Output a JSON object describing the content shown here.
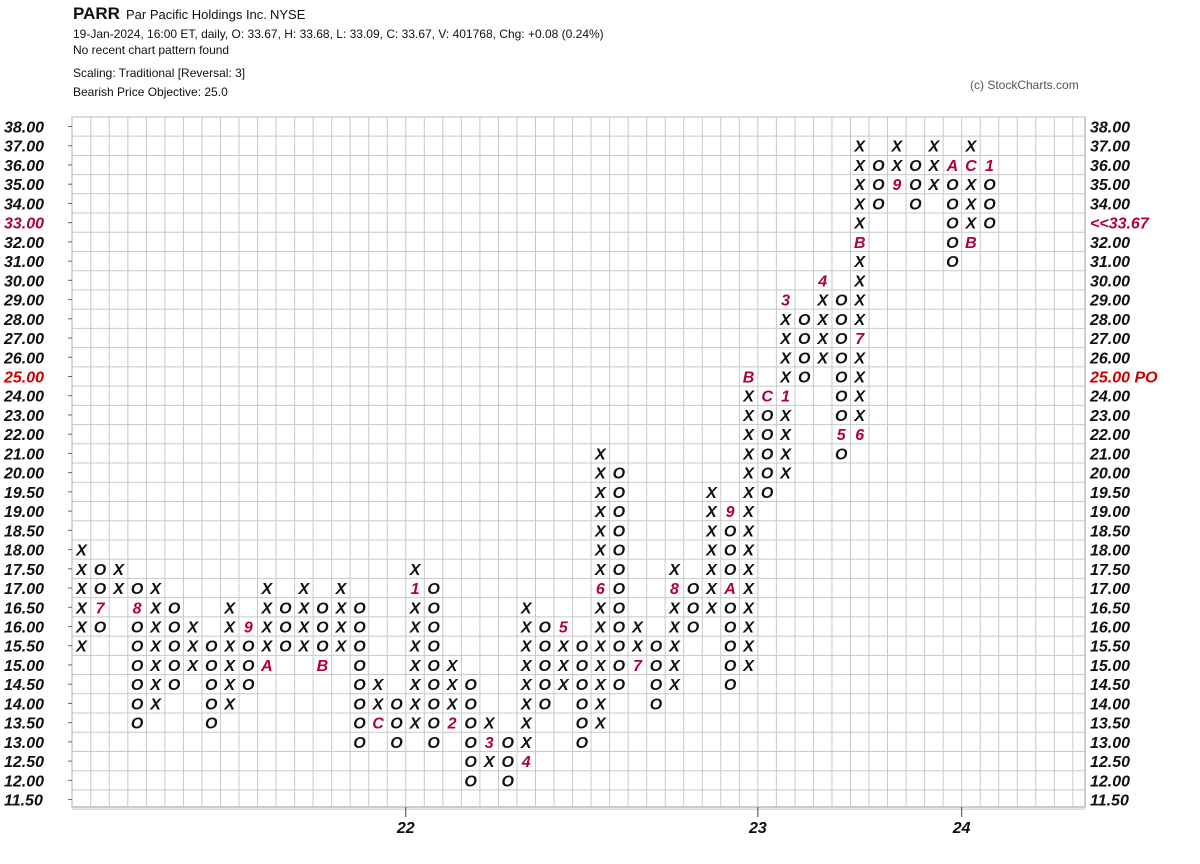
{
  "header": {
    "symbol": "PARR",
    "company": "Par Pacific Holdings Inc.",
    "exchange": "NYSE",
    "quote_line": "19-Jan-2024, 16:00 ET, daily, O: 33.67, H: 33.68, L: 33.09, C: 33.67, V: 401768, Chg: +0.08 (0.24%)",
    "pattern_line": "No recent chart pattern found",
    "scaling_line": "Scaling: Traditional [Reversal: 3]",
    "objective_line": "Bearish Price Objective: 25.0",
    "copyright": "(c) StockCharts.com"
  },
  "chart_data": {
    "type": "point-and-figure",
    "box_levels": [
      "38.00",
      "37.00",
      "36.00",
      "35.00",
      "34.00",
      "33.00",
      "32.00",
      "31.00",
      "30.00",
      "29.00",
      "28.00",
      "27.00",
      "26.00",
      "25.00",
      "24.00",
      "23.00",
      "22.00",
      "21.00",
      "20.00",
      "19.50",
      "19.00",
      "18.50",
      "18.00",
      "17.50",
      "17.00",
      "16.50",
      "16.00",
      "15.50",
      "15.00",
      "14.50",
      "14.00",
      "13.50",
      "13.00",
      "12.50",
      "12.00",
      "11.50"
    ],
    "highlight_levels": {
      "33.00": "#b00040",
      "25.00": "#cc0000"
    },
    "right_labels": {
      "33.00": "<<33.67",
      "25.00": "25.00 PO"
    },
    "x_labels": [
      {
        "label": "22",
        "column": 18
      },
      {
        "label": "23",
        "column": 37
      },
      {
        "label": "24",
        "column": 48
      }
    ],
    "columns": [
      {
        "col": 0,
        "type": "X",
        "low": "15.50",
        "high": "18.00"
      },
      {
        "col": 1,
        "type": "O",
        "low": "16.00",
        "high": "17.50",
        "months": {
          "16.50": "7"
        }
      },
      {
        "col": 2,
        "type": "X",
        "low": "17.00",
        "high": "17.50"
      },
      {
        "col": 3,
        "type": "O",
        "low": "13.50",
        "high": "17.00",
        "months": {
          "16.50": "8"
        }
      },
      {
        "col": 4,
        "type": "X",
        "low": "14.00",
        "high": "17.00"
      },
      {
        "col": 5,
        "type": "O",
        "low": "14.50",
        "high": "16.50"
      },
      {
        "col": 6,
        "type": "X",
        "low": "15.00",
        "high": "16.00"
      },
      {
        "col": 7,
        "type": "O",
        "low": "13.50",
        "high": "15.50"
      },
      {
        "col": 8,
        "type": "X",
        "low": "14.00",
        "high": "16.50"
      },
      {
        "col": 9,
        "type": "O",
        "low": "14.50",
        "high": "16.00",
        "months": {
          "16.00": "9"
        }
      },
      {
        "col": 10,
        "type": "X",
        "low": "15.00",
        "high": "17.00",
        "months": {
          "15.00": "A"
        }
      },
      {
        "col": 11,
        "type": "O",
        "low": "15.50",
        "high": "16.50"
      },
      {
        "col": 12,
        "type": "X",
        "low": "15.50",
        "high": "17.00"
      },
      {
        "col": 13,
        "type": "O",
        "low": "15.00",
        "high": "16.50",
        "months": {
          "15.00": "B"
        }
      },
      {
        "col": 14,
        "type": "X",
        "low": "15.50",
        "high": "17.00"
      },
      {
        "col": 15,
        "type": "O",
        "low": "13.00",
        "high": "16.50"
      },
      {
        "col": 16,
        "type": "X",
        "low": "13.50",
        "high": "14.50",
        "months": {
          "13.50": "C"
        }
      },
      {
        "col": 17,
        "type": "O",
        "low": "13.00",
        "high": "14.00"
      },
      {
        "col": 18,
        "type": "X",
        "low": "13.50",
        "high": "17.50",
        "months": {
          "17.00": "1"
        }
      },
      {
        "col": 19,
        "type": "O",
        "low": "13.00",
        "high": "17.00"
      },
      {
        "col": 20,
        "type": "X",
        "low": "13.50",
        "high": "15.00",
        "months": {
          "13.50": "2"
        }
      },
      {
        "col": 21,
        "type": "O",
        "low": "12.00",
        "high": "14.50"
      },
      {
        "col": 22,
        "type": "X",
        "low": "12.50",
        "high": "13.50",
        "months": {
          "13.00": "3"
        }
      },
      {
        "col": 23,
        "type": "O",
        "low": "12.00",
        "high": "13.00"
      },
      {
        "col": 24,
        "type": "X",
        "low": "12.50",
        "high": "16.50",
        "months": {
          "12.50": "4"
        }
      },
      {
        "col": 25,
        "type": "O",
        "low": "14.00",
        "high": "16.00"
      },
      {
        "col": 26,
        "type": "X",
        "low": "14.50",
        "high": "16.00",
        "months": {
          "16.00": "5"
        }
      },
      {
        "col": 27,
        "type": "O",
        "low": "13.00",
        "high": "15.50"
      },
      {
        "col": 28,
        "type": "X",
        "low": "13.50",
        "high": "21.00",
        "months": {
          "17.00": "6"
        }
      },
      {
        "col": 29,
        "type": "O",
        "low": "14.50",
        "high": "20.00"
      },
      {
        "col": 30,
        "type": "X",
        "low": "15.00",
        "high": "16.00",
        "months": {
          "15.00": "7"
        }
      },
      {
        "col": 31,
        "type": "O",
        "low": "14.00",
        "high": "15.50"
      },
      {
        "col": 32,
        "type": "X",
        "low": "14.50",
        "high": "17.50",
        "months": {
          "17.00": "8"
        }
      },
      {
        "col": 33,
        "type": "O",
        "low": "16.00",
        "high": "17.00"
      },
      {
        "col": 34,
        "type": "X",
        "low": "16.50",
        "high": "19.50"
      },
      {
        "col": 35,
        "type": "O",
        "low": "14.50",
        "high": "19.00",
        "months": {
          "19.00": "9",
          "17.00": "A"
        }
      },
      {
        "col": 36,
        "type": "X",
        "low": "15.00",
        "high": "25.00",
        "months": {
          "25.00": "B"
        }
      },
      {
        "col": 37,
        "type": "O",
        "low": "19.50",
        "high": "24.00",
        "months": {
          "24.00": "C"
        }
      },
      {
        "col": 38,
        "type": "X",
        "low": "20.00",
        "high": "29.00",
        "months": {
          "24.00": "1",
          "29.00": "3"
        }
      },
      {
        "col": 39,
        "type": "O",
        "low": "25.00",
        "high": "28.00"
      },
      {
        "col": 40,
        "type": "X",
        "low": "26.00",
        "high": "30.00",
        "months": {
          "30.00": "4"
        }
      },
      {
        "col": 41,
        "type": "O",
        "low": "21.00",
        "high": "29.00",
        "months": {
          "22.00": "5"
        }
      },
      {
        "col": 42,
        "type": "X",
        "low": "22.00",
        "high": "37.00",
        "months": {
          "22.00": "6",
          "27.00": "7",
          "32.00": "B"
        }
      },
      {
        "col": 43,
        "type": "O",
        "low": "34.00",
        "high": "36.00"
      },
      {
        "col": 44,
        "type": "X",
        "low": "35.00",
        "high": "37.00",
        "months": {
          "35.00": "9"
        }
      },
      {
        "col": 45,
        "type": "O",
        "low": "34.00",
        "high": "36.00"
      },
      {
        "col": 46,
        "type": "X",
        "low": "35.00",
        "high": "37.00"
      },
      {
        "col": 47,
        "type": "O",
        "low": "31.00",
        "high": "36.00",
        "months": {
          "36.00": "A"
        }
      },
      {
        "col": 48,
        "type": "X",
        "low": "32.00",
        "high": "37.00",
        "months": {
          "36.00": "C",
          "32.00": "B"
        }
      },
      {
        "col": 49,
        "type": "O",
        "low": "33.00",
        "high": "36.00",
        "months": {
          "36.00": "1"
        }
      }
    ]
  }
}
